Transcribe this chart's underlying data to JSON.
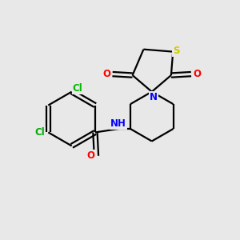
{
  "background_color": "#e8e8e8",
  "atom_colors": {
    "S": "#cccc00",
    "O": "#ff0000",
    "N": "#0000ff",
    "Cl_top": "#00bb00",
    "Cl_left": "#00aa00",
    "C": "#000000",
    "NH": "#0000ff"
  },
  "bond_color": "#000000",
  "bond_width": 1.6
}
